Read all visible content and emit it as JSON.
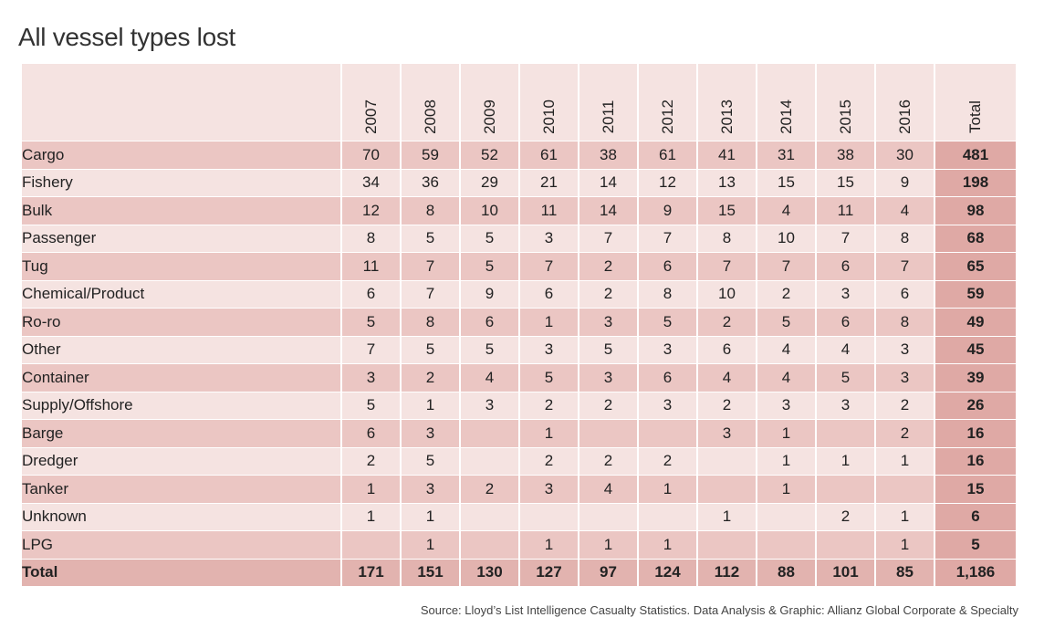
{
  "title": "All vessel types lost",
  "source": "Source: Lloyd’s List Intelligence Casualty Statistics.  Data Analysis & Graphic: Allianz Global Corporate & Specialty",
  "chart_data": {
    "type": "table",
    "title": "All vessel types lost",
    "columns": [
      "2007",
      "2008",
      "2009",
      "2010",
      "2011",
      "2012",
      "2013",
      "2014",
      "2015",
      "2016",
      "Total"
    ],
    "rows": [
      {
        "label": "Cargo",
        "values": [
          "70",
          "59",
          "52",
          "61",
          "38",
          "61",
          "41",
          "31",
          "38",
          "30",
          "481"
        ]
      },
      {
        "label": "Fishery",
        "values": [
          "34",
          "36",
          "29",
          "21",
          "14",
          "12",
          "13",
          "15",
          "15",
          "9",
          "198"
        ]
      },
      {
        "label": "Bulk",
        "values": [
          "12",
          "8",
          "10",
          "11",
          "14",
          "9",
          "15",
          "4",
          "11",
          "4",
          "98"
        ]
      },
      {
        "label": "Passenger",
        "values": [
          "8",
          "5",
          "5",
          "3",
          "7",
          "7",
          "8",
          "10",
          "7",
          "8",
          "68"
        ]
      },
      {
        "label": "Tug",
        "values": [
          "11",
          "7",
          "5",
          "7",
          "2",
          "6",
          "7",
          "7",
          "6",
          "7",
          "65"
        ]
      },
      {
        "label": "Chemical/Product",
        "values": [
          "6",
          "7",
          "9",
          "6",
          "2",
          "8",
          "10",
          "2",
          "3",
          "6",
          "59"
        ]
      },
      {
        "label": "Ro-ro",
        "values": [
          "5",
          "8",
          "6",
          "1",
          "3",
          "5",
          "2",
          "5",
          "6",
          "8",
          "49"
        ]
      },
      {
        "label": "Other",
        "values": [
          "7",
          "5",
          "5",
          "3",
          "5",
          "3",
          "6",
          "4",
          "4",
          "3",
          "45"
        ]
      },
      {
        "label": "Container",
        "values": [
          "3",
          "2",
          "4",
          "5",
          "3",
          "6",
          "4",
          "4",
          "5",
          "3",
          "39"
        ]
      },
      {
        "label": "Supply/Offshore",
        "values": [
          "5",
          "1",
          "3",
          "2",
          "2",
          "3",
          "2",
          "3",
          "3",
          "2",
          "26"
        ]
      },
      {
        "label": "Barge",
        "values": [
          "6",
          "3",
          "",
          "1",
          "",
          "",
          "3",
          "1",
          "",
          "2",
          "16"
        ]
      },
      {
        "label": "Dredger",
        "values": [
          "2",
          "5",
          "",
          "2",
          "2",
          "2",
          "",
          "1",
          "1",
          "1",
          "16"
        ]
      },
      {
        "label": "Tanker",
        "values": [
          "1",
          "3",
          "2",
          "3",
          "4",
          "1",
          "",
          "1",
          "",
          "",
          "15"
        ]
      },
      {
        "label": "Unknown",
        "values": [
          "1",
          "1",
          "",
          "",
          "",
          "",
          "1",
          "",
          "2",
          "1",
          "6"
        ]
      },
      {
        "label": "LPG",
        "values": [
          "",
          "1",
          "",
          "1",
          "1",
          "1",
          "",
          "",
          "",
          "1",
          "5"
        ]
      }
    ],
    "total_row": {
      "label": "Total",
      "values": [
        "171",
        "151",
        "130",
        "127",
        "97",
        "124",
        "112",
        "88",
        "101",
        "85",
        "1,186"
      ]
    }
  },
  "colors": {
    "light_row": "#f5e3e1",
    "dark_row": "#ebc6c3",
    "total_cell": "#dfa9a5"
  }
}
